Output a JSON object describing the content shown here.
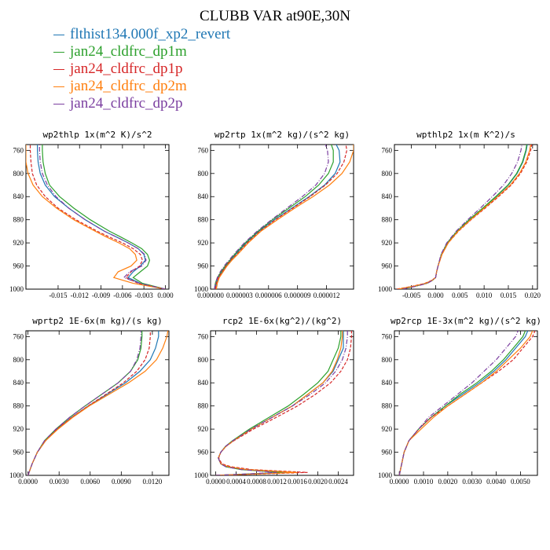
{
  "title": "CLUBB VAR at90E,30N",
  "legend": [
    {
      "label": "flthist134.000f_xp2_revert",
      "color": "#1f77b4"
    },
    {
      "label": "jan24_cldfrc_dp1m",
      "color": "#2ca02c"
    },
    {
      "label": "jan24_cldfrc_dp1p",
      "color": "#d62728"
    },
    {
      "label": "jan24_cldfrc_dp2m",
      "color": "#ff7f0e"
    },
    {
      "label": "jan24_cldfrc_dp2p",
      "color": "#7b3fa0"
    }
  ],
  "chart_data": [
    {
      "type": "line",
      "title": "wp2thlp  1x(m^2 K)/s^2",
      "y": [
        1000,
        990,
        980,
        970,
        960,
        950,
        940,
        930,
        920,
        910,
        900,
        880,
        860,
        840,
        820,
        800,
        780,
        760,
        750
      ],
      "ylim": [
        1000,
        750
      ],
      "yticks": [
        760,
        800,
        840,
        880,
        920,
        960,
        1000
      ],
      "xlim": [
        -0.0195,
        0.0005
      ],
      "xticks": [
        -0.015,
        -0.012,
        -0.009,
        -0.006,
        -0.003,
        0.0
      ],
      "xticklabels": [
        "-0.015",
        "-0.012",
        "-0.009",
        "-0.006",
        "-0.003",
        "0.000"
      ],
      "series": [
        {
          "values": [
            0.0,
            -0.0035,
            -0.0052,
            -0.0045,
            -0.0035,
            -0.0028,
            -0.003,
            -0.0038,
            -0.0052,
            -0.0068,
            -0.0085,
            -0.0112,
            -0.0135,
            -0.0155,
            -0.0168,
            -0.0175,
            -0.0178,
            -0.0179,
            -0.0179
          ],
          "color": "#1f77b4",
          "dash": "solid"
        },
        {
          "values": [
            0.0,
            -0.0032,
            -0.0045,
            -0.0035,
            -0.0025,
            -0.0022,
            -0.0025,
            -0.0033,
            -0.0047,
            -0.0062,
            -0.0078,
            -0.0105,
            -0.0128,
            -0.0148,
            -0.0162,
            -0.0168,
            -0.0171,
            -0.0172,
            -0.0172
          ],
          "color": "#2ca02c",
          "dash": "solid"
        },
        {
          "values": [
            0.0,
            -0.0038,
            -0.0055,
            -0.0048,
            -0.0036,
            -0.0032,
            -0.0035,
            -0.0045,
            -0.006,
            -0.0078,
            -0.0095,
            -0.0125,
            -0.015,
            -0.0168,
            -0.018,
            -0.0186,
            -0.0188,
            -0.0189,
            -0.0189
          ],
          "color": "#d62728",
          "dash": "4,2"
        },
        {
          "values": [
            0.0,
            -0.0045,
            -0.0072,
            -0.0066,
            -0.0048,
            -0.004,
            -0.0042,
            -0.005,
            -0.0065,
            -0.0082,
            -0.0098,
            -0.0128,
            -0.0152,
            -0.0172,
            -0.0185,
            -0.0192,
            -0.0195,
            -0.0195,
            -0.0195
          ],
          "color": "#ff7f0e",
          "dash": "solid"
        },
        {
          "values": [
            0.0,
            -0.0036,
            -0.0058,
            -0.005,
            -0.0033,
            -0.0027,
            -0.0029,
            -0.0038,
            -0.0052,
            -0.0068,
            -0.0085,
            -0.0112,
            -0.0135,
            -0.0153,
            -0.0165,
            -0.0172,
            -0.0175,
            -0.0176,
            -0.0176
          ],
          "color": "#7b3fa0",
          "dash": "6,2,1,2"
        }
      ]
    },
    {
      "type": "line",
      "title": "wp2rtp  1x(m^2 kg)/(s^2 kg)",
      "y": [
        1000,
        990,
        980,
        970,
        960,
        950,
        940,
        920,
        900,
        880,
        860,
        840,
        820,
        800,
        780,
        760,
        750
      ],
      "ylim": [
        1000,
        750
      ],
      "yticks": [
        760,
        800,
        840,
        880,
        920,
        960,
        1000
      ],
      "xlim": [
        0.0,
        1.48e-05
      ],
      "xticks": [
        0.0,
        3e-06,
        6e-06,
        9e-06,
        1.2e-05
      ],
      "xticklabels": [
        "0.000000",
        "0.000003",
        "0.000006",
        "0.000009",
        "0.000012"
      ],
      "series": [
        {
          "values": [
            5e-07,
            6e-07,
            8e-07,
            1.2e-06,
            1.6e-06,
            2.1e-06,
            2.6e-06,
            3.7e-06,
            5e-06,
            6.6e-06,
            8.4e-06,
            1.02e-05,
            1.18e-05,
            1.29e-05,
            1.34e-05,
            1.33e-05,
            1.3e-05
          ],
          "color": "#1f77b4",
          "dash": "solid"
        },
        {
          "values": [
            4e-07,
            5e-07,
            7e-07,
            1.1e-06,
            1.5e-06,
            2e-06,
            2.5e-06,
            3.6e-06,
            4.9e-06,
            6.4e-06,
            8.1e-06,
            9.8e-06,
            1.12e-05,
            1.22e-05,
            1.27e-05,
            1.27e-05,
            1.25e-05
          ],
          "color": "#2ca02c",
          "dash": "solid"
        },
        {
          "values": [
            5e-07,
            6e-07,
            8e-07,
            1.2e-06,
            1.6e-06,
            2.1e-06,
            2.7e-06,
            3.8e-06,
            5.1e-06,
            6.7e-06,
            8.5e-06,
            1.03e-05,
            1.19e-05,
            1.31e-05,
            1.38e-05,
            1.41e-05,
            1.4e-05
          ],
          "color": "#d62728",
          "dash": "4,2"
        },
        {
          "values": [
            6e-07,
            7e-07,
            9e-07,
            1.3e-06,
            1.7e-06,
            2.2e-06,
            2.8e-06,
            3.9e-06,
            5.2e-06,
            6.9e-06,
            8.7e-06,
            1.06e-05,
            1.23e-05,
            1.36e-05,
            1.44e-05,
            1.48e-05,
            1.48e-05
          ],
          "color": "#ff7f0e",
          "dash": "solid"
        },
        {
          "values": [
            4e-07,
            5e-07,
            7e-07,
            1e-06,
            1.4e-06,
            1.9e-06,
            2.4e-06,
            3.5e-06,
            4.8e-06,
            6.3e-06,
            7.9e-06,
            9.5e-06,
            1.09e-05,
            1.18e-05,
            1.22e-05,
            1.21e-05,
            1.19e-05
          ],
          "color": "#7b3fa0",
          "dash": "6,2,1,2"
        }
      ]
    },
    {
      "type": "line",
      "title": "wpthlp2  1x(m K^2)/s",
      "y": [
        1000,
        995,
        990,
        985,
        980,
        970,
        960,
        940,
        920,
        900,
        880,
        860,
        840,
        820,
        800,
        780,
        760,
        750
      ],
      "ylim": [
        1000,
        750
      ],
      "yticks": [
        760,
        800,
        840,
        880,
        920,
        960,
        1000
      ],
      "xlim": [
        -0.0085,
        0.021
      ],
      "xticks": [
        -0.005,
        0.0,
        0.005,
        0.01,
        0.015,
        0.02
      ],
      "xticklabels": [
        "-0.005",
        "0.000",
        "0.005",
        "0.010",
        "0.015",
        "0.020"
      ],
      "series": [
        {
          "values": [
            -0.0075,
            -0.0045,
            -0.002,
            -0.0008,
            0.0,
            0.0002,
            0.0005,
            0.0012,
            0.0025,
            0.0045,
            0.007,
            0.0098,
            0.0125,
            0.015,
            0.0168,
            0.018,
            0.0187,
            0.0189
          ],
          "color": "#1f77b4",
          "dash": "solid"
        },
        {
          "values": [
            -0.007,
            -0.0042,
            -0.0018,
            -0.0007,
            0.0,
            0.0002,
            0.0005,
            0.0012,
            0.0024,
            0.0044,
            0.0069,
            0.0097,
            0.0124,
            0.0149,
            0.0167,
            0.0179,
            0.0186,
            0.0188
          ],
          "color": "#2ca02c",
          "dash": "solid"
        },
        {
          "values": [
            -0.008,
            -0.0048,
            -0.0022,
            -0.0009,
            0.0,
            0.0002,
            0.0005,
            0.0013,
            0.0026,
            0.0047,
            0.0073,
            0.0102,
            0.013,
            0.0156,
            0.0175,
            0.0188,
            0.0196,
            0.0198
          ],
          "color": "#d62728",
          "dash": "4,2"
        },
        {
          "values": [
            -0.0077,
            -0.0046,
            -0.002,
            -0.0008,
            0.0,
            0.0002,
            0.0005,
            0.0013,
            0.0026,
            0.0046,
            0.0072,
            0.01,
            0.0128,
            0.0154,
            0.0173,
            0.0186,
            0.0194,
            0.0196
          ],
          "color": "#ff7f0e",
          "dash": "solid"
        },
        {
          "values": [
            -0.0068,
            -0.004,
            -0.0017,
            -0.0007,
            0.0,
            0.0002,
            0.0005,
            0.0011,
            0.0023,
            0.0042,
            0.0066,
            0.0092,
            0.0117,
            0.014,
            0.0157,
            0.0169,
            0.0176,
            0.0178
          ],
          "color": "#7b3fa0",
          "dash": "6,2,1,2"
        }
      ]
    },
    {
      "type": "line",
      "title": "wprtp2  1E-6x(m kg)/(s kg)",
      "y": [
        1000,
        990,
        980,
        960,
        940,
        920,
        900,
        880,
        860,
        840,
        820,
        800,
        780,
        760,
        750
      ],
      "ylim": [
        1000,
        750
      ],
      "yticks": [
        760,
        800,
        840,
        880,
        920,
        960,
        1000
      ],
      "xlim": [
        -0.0002,
        0.0136
      ],
      "xticks": [
        0.0,
        0.003,
        0.006,
        0.009,
        0.012
      ],
      "xticklabels": [
        "0.0000",
        "0.0030",
        "0.0060",
        "0.0090",
        "0.0120"
      ],
      "series": [
        {
          "values": [
            0.0,
            0.0002,
            0.0004,
            0.0009,
            0.0017,
            0.0028,
            0.0042,
            0.0058,
            0.0076,
            0.0094,
            0.0108,
            0.0118,
            0.0123,
            0.0126,
            0.0126
          ],
          "color": "#1f77b4",
          "dash": "solid"
        },
        {
          "values": [
            0.0,
            0.0002,
            0.0004,
            0.0009,
            0.0016,
            0.0027,
            0.004,
            0.0055,
            0.0071,
            0.0087,
            0.0099,
            0.0106,
            0.0109,
            0.011,
            0.011
          ],
          "color": "#2ca02c",
          "dash": "solid"
        },
        {
          "values": [
            0.0,
            0.0002,
            0.0004,
            0.0009,
            0.0017,
            0.0028,
            0.0042,
            0.0058,
            0.0075,
            0.0092,
            0.0105,
            0.0113,
            0.0117,
            0.0118,
            0.0118
          ],
          "color": "#d62728",
          "dash": "4,2"
        },
        {
          "values": [
            0.0,
            0.0002,
            0.0004,
            0.0009,
            0.0017,
            0.0029,
            0.0043,
            0.0059,
            0.0078,
            0.0097,
            0.0113,
            0.0124,
            0.013,
            0.0134,
            0.0135
          ],
          "color": "#ff7f0e",
          "dash": "solid"
        },
        {
          "values": [
            0.0,
            0.0002,
            0.0004,
            0.0009,
            0.0016,
            0.0027,
            0.004,
            0.0055,
            0.0071,
            0.0087,
            0.0099,
            0.0105,
            0.0108,
            0.0109,
            0.0109
          ],
          "color": "#7b3fa0",
          "dash": "6,2,1,2"
        }
      ]
    },
    {
      "type": "line",
      "title": "rcp2  1E-6x(kg^2)/(kg^2)",
      "y": [
        1000,
        995,
        990,
        985,
        980,
        970,
        960,
        950,
        940,
        920,
        900,
        880,
        860,
        840,
        820,
        800,
        780,
        760,
        750
      ],
      "ylim": [
        1000,
        750
      ],
      "yticks": [
        760,
        800,
        840,
        880,
        920,
        960,
        1000
      ],
      "xlim": [
        -0.0001,
        0.0027
      ],
      "xticks": [
        0.0,
        0.0004,
        0.0008,
        0.0012,
        0.0016,
        0.002,
        0.0024
      ],
      "xticklabels": [
        "0.0000",
        "0.0004",
        "0.0008",
        "0.0012",
        "0.0016",
        "0.0020",
        "0.0024"
      ],
      "series": [
        {
          "values": [
            0.0,
            0.0014,
            0.0006,
            0.0002,
            0.0001,
            5e-05,
            0.0001,
            0.0002,
            0.00035,
            0.0007,
            0.0011,
            0.0015,
            0.0018,
            0.0021,
            0.0023,
            0.0024,
            0.0025,
            0.0025,
            0.0025
          ],
          "color": "#1f77b4",
          "dash": "solid"
        },
        {
          "values": [
            0.0,
            0.0013,
            0.0005,
            0.0002,
            0.0001,
            5e-05,
            0.0001,
            0.00019,
            0.00033,
            0.00066,
            0.00104,
            0.00142,
            0.00172,
            0.002,
            0.0022,
            0.0023,
            0.0024,
            0.00245,
            0.00245
          ],
          "color": "#2ca02c",
          "dash": "solid"
        },
        {
          "values": [
            0.0,
            0.0018,
            0.0007,
            0.0003,
            0.00012,
            6e-05,
            0.0001,
            0.0002,
            0.00036,
            0.00074,
            0.00118,
            0.0016,
            0.00195,
            0.00225,
            0.00245,
            0.00258,
            0.00264,
            0.00266,
            0.00266
          ],
          "color": "#d62728",
          "dash": "4,2"
        },
        {
          "values": [
            0.0,
            0.0016,
            0.0006,
            0.00025,
            0.0001,
            5e-05,
            0.0001,
            0.0002,
            0.00035,
            0.0007,
            0.0011,
            0.0015,
            0.0018,
            0.0021,
            0.00228,
            0.00238,
            0.00245,
            0.00248,
            0.00248
          ],
          "color": "#ff7f0e",
          "dash": "solid"
        },
        {
          "values": [
            0.0,
            0.0012,
            0.0005,
            0.0002,
            0.0001,
            5e-05,
            0.0001,
            0.00019,
            0.00034,
            0.00069,
            0.0011,
            0.0015,
            0.00185,
            0.00215,
            0.00235,
            0.00248,
            0.00255,
            0.00258,
            0.00258
          ],
          "color": "#7b3fa0",
          "dash": "6,2,1,2"
        }
      ]
    },
    {
      "type": "line",
      "title": "wp2rcp  1E-3x(m^2 kg)/(s^2 kg)",
      "y": [
        1000,
        990,
        980,
        960,
        940,
        920,
        900,
        880,
        860,
        840,
        820,
        800,
        780,
        760,
        750
      ],
      "ylim": [
        1000,
        750
      ],
      "yticks": [
        760,
        800,
        840,
        880,
        920,
        960,
        1000
      ],
      "xlim": [
        -0.0002,
        0.0057
      ],
      "xticks": [
        0.0,
        0.001,
        0.002,
        0.003,
        0.004,
        0.005
      ],
      "xticklabels": [
        "0.0000",
        "0.0010",
        "0.0020",
        "0.0030",
        "0.0040",
        "0.0050"
      ],
      "series": [
        {
          "values": [
            0.0,
            5e-05,
            0.0001,
            0.0002,
            0.0004,
            0.0008,
            0.0013,
            0.0019,
            0.0026,
            0.0033,
            0.0039,
            0.0044,
            0.0048,
            0.0052,
            0.0053
          ],
          "color": "#1f77b4",
          "dash": "solid"
        },
        {
          "values": [
            0.0,
            5e-05,
            0.0001,
            0.0002,
            0.0004,
            0.0008,
            0.0013,
            0.0019,
            0.0025,
            0.0032,
            0.0038,
            0.0043,
            0.0047,
            0.0051,
            0.0052
          ],
          "color": "#2ca02c",
          "dash": "solid"
        },
        {
          "values": [
            0.0,
            5e-05,
            0.0001,
            0.0002,
            0.0004,
            0.0008,
            0.0013,
            0.002,
            0.0027,
            0.0034,
            0.0041,
            0.0047,
            0.0051,
            0.0055,
            0.0056
          ],
          "color": "#d62728",
          "dash": "4,2"
        },
        {
          "values": [
            0.0,
            5e-05,
            0.0001,
            0.0002,
            0.0004,
            0.0009,
            0.0014,
            0.002,
            0.0027,
            0.0034,
            0.004,
            0.0045,
            0.005,
            0.0054,
            0.0055
          ],
          "color": "#ff7f0e",
          "dash": "solid"
        },
        {
          "values": [
            0.0,
            5e-05,
            0.0001,
            0.0002,
            0.0004,
            0.0008,
            0.0012,
            0.0018,
            0.0024,
            0.003,
            0.0035,
            0.004,
            0.0044,
            0.0048,
            0.0049
          ],
          "color": "#7b3fa0",
          "dash": "6,2,1,2"
        }
      ]
    }
  ]
}
